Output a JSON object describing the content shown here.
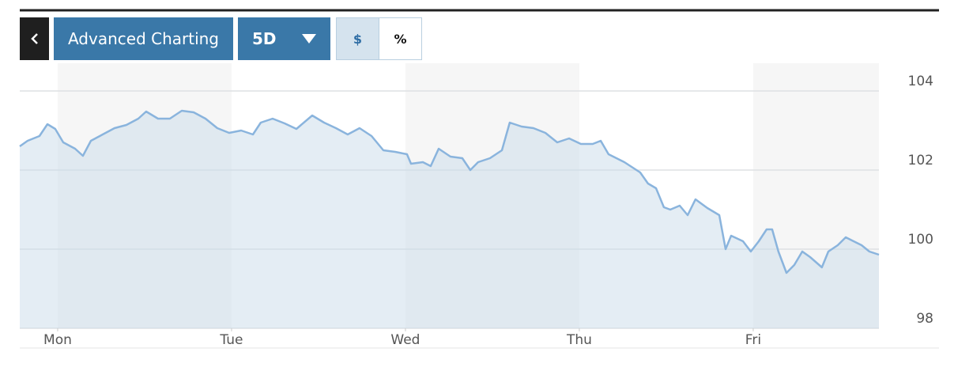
{
  "toolbar": {
    "charting": "Advanced Charting",
    "range": "5D",
    "dollar": "$",
    "percent": "%"
  },
  "chart_data": {
    "type": "line",
    "x": [
      -0.218,
      -0.173,
      -0.105,
      -0.059,
      -0.014,
      0.032,
      0.1,
      0.145,
      0.191,
      0.259,
      0.327,
      0.395,
      0.464,
      0.509,
      0.577,
      0.645,
      0.714,
      0.782,
      0.85,
      0.918,
      0.986,
      1.055,
      1.123,
      1.168,
      1.236,
      1.305,
      1.373,
      1.464,
      1.532,
      1.6,
      1.668,
      1.736,
      1.805,
      1.873,
      1.941,
      2.009,
      2.032,
      2.1,
      2.145,
      2.191,
      2.259,
      2.327,
      2.373,
      2.418,
      2.486,
      2.555,
      2.6,
      2.668,
      2.736,
      2.805,
      2.873,
      2.941,
      3.009,
      3.077,
      3.123,
      3.168,
      3.259,
      3.35,
      3.395,
      3.441,
      3.486,
      3.523,
      3.577,
      3.623,
      3.668,
      3.736,
      3.805,
      3.841,
      3.873,
      3.941,
      3.986,
      4.032,
      4.077,
      4.109,
      4.145,
      4.191,
      4.236,
      4.282,
      4.327,
      4.395,
      4.432,
      4.486,
      4.532,
      4.577,
      4.623,
      4.668,
      4.723
    ],
    "values": [
      102.6,
      102.74,
      102.86,
      103.16,
      103.04,
      102.7,
      102.54,
      102.36,
      102.74,
      102.9,
      103.06,
      103.14,
      103.3,
      103.48,
      103.3,
      103.3,
      103.5,
      103.46,
      103.3,
      103.06,
      102.94,
      103.0,
      102.9,
      103.2,
      103.3,
      103.18,
      103.04,
      103.38,
      103.2,
      103.06,
      102.9,
      103.06,
      102.86,
      102.5,
      102.46,
      102.4,
      102.16,
      102.2,
      102.1,
      102.54,
      102.34,
      102.3,
      102.0,
      102.2,
      102.3,
      102.5,
      103.2,
      103.1,
      103.06,
      102.94,
      102.7,
      102.8,
      102.66,
      102.66,
      102.74,
      102.4,
      102.2,
      101.94,
      101.66,
      101.54,
      101.06,
      101.0,
      101.1,
      100.86,
      101.26,
      101.04,
      100.86,
      100.0,
      100.34,
      100.2,
      99.94,
      100.2,
      100.5,
      100.5,
      99.94,
      99.4,
      99.6,
      99.94,
      99.8,
      99.54,
      99.94,
      100.1,
      100.3,
      100.2,
      100.1,
      99.94,
      99.86
    ],
    "color": "#8ab4dd",
    "xlim": [
      -0.218,
      4.723
    ],
    "xticks": [
      {
        "value": 0,
        "label": "Mon"
      },
      {
        "value": 1,
        "label": "Tue"
      },
      {
        "value": 2,
        "label": "Wed"
      },
      {
        "value": 3,
        "label": "Thu"
      },
      {
        "value": 4,
        "label": "Fri"
      }
    ],
    "ylim": [
      98,
      104.6
    ],
    "yticks": [
      98,
      100,
      102,
      104
    ],
    "grid": true
  }
}
